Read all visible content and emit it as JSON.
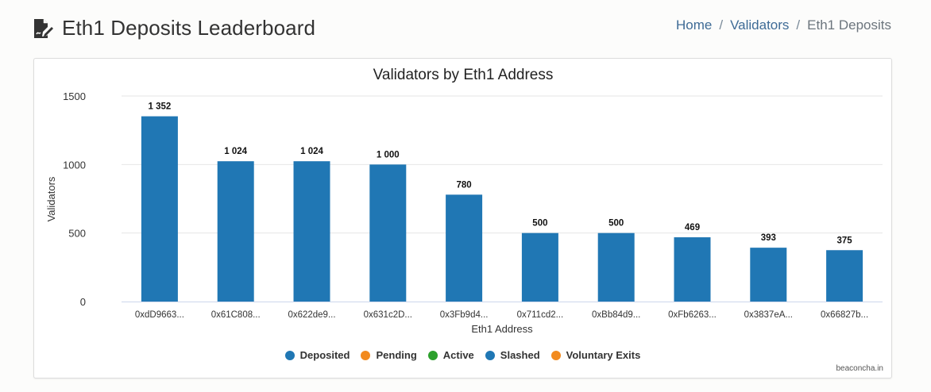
{
  "header": {
    "title": "Eth1 Deposits Leaderboard",
    "icon": "file-signature-icon",
    "breadcrumb": {
      "home": "Home",
      "separator_1": "/",
      "validators": "Validators",
      "separator_2": "/",
      "current": "Eth1 Deposits"
    }
  },
  "credits": "beaconcha.in",
  "colors": {
    "bar": "#2077b4",
    "deposited": "#2077b4",
    "pending": "#f28a1e",
    "active": "#2ca02c",
    "slashed": "#2077b4",
    "voluntary_exits": "#f28a1e"
  },
  "chart_data": {
    "type": "bar",
    "title": "Validators by Eth1 Address",
    "xlabel": "Eth1 Address",
    "ylabel": "Validators",
    "ylim": [
      0,
      1500
    ],
    "yticks": [
      "0",
      "500",
      "1000",
      "1500"
    ],
    "grid": true,
    "legend_placement": "bottom",
    "categories": [
      "0xdD9663...",
      "0x61C808...",
      "0x622de9...",
      "0x631c2D...",
      "0x3Fb9d4...",
      "0x711cd2...",
      "0xBb84d9...",
      "0xFb6263...",
      "0x3837eA...",
      "0x66827b..."
    ],
    "values": [
      1352,
      1024,
      1024,
      1000,
      780,
      500,
      500,
      469,
      393,
      375
    ],
    "value_labels": [
      "1 352",
      "1 024",
      "1 024",
      "1 000",
      "780",
      "500",
      "500",
      "469",
      "393",
      "375"
    ],
    "legend": [
      "Deposited",
      "Pending",
      "Active",
      "Slashed",
      "Voluntary Exits"
    ]
  }
}
